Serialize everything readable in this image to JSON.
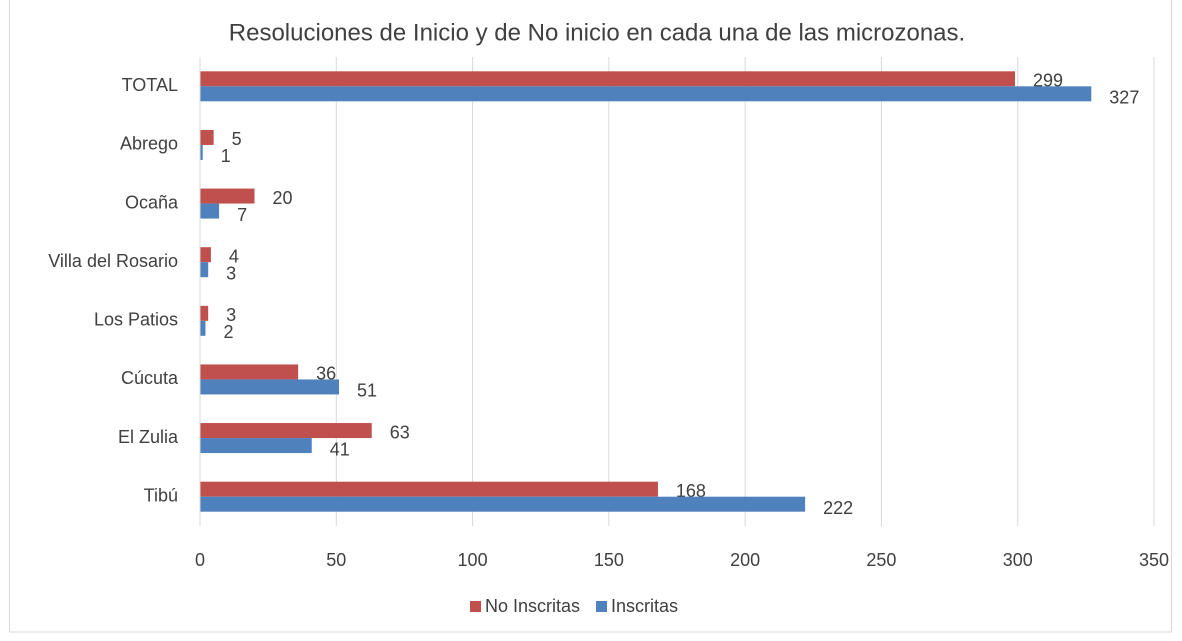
{
  "chart_data": {
    "type": "barh",
    "title": "Resoluciones de Inicio y de No inicio en cada una de las microzonas.",
    "categories": [
      "TOTAL",
      "Abrego",
      "Ocaña",
      "Villa del Rosario",
      "Los Patios",
      "Cúcuta",
      "El Zulia",
      "Tibú"
    ],
    "series": [
      {
        "name": "No Inscritas",
        "color": "#c0504d",
        "values": [
          299,
          5,
          20,
          4,
          3,
          36,
          63,
          168
        ]
      },
      {
        "name": "Inscritas",
        "color": "#4f81bd",
        "values": [
          327,
          1,
          7,
          3,
          2,
          51,
          41,
          222
        ]
      }
    ],
    "xlim": [
      0,
      350
    ],
    "xticks": [
      0,
      50,
      100,
      150,
      200,
      250,
      300,
      350
    ],
    "grid": true,
    "legend": "bottom"
  }
}
